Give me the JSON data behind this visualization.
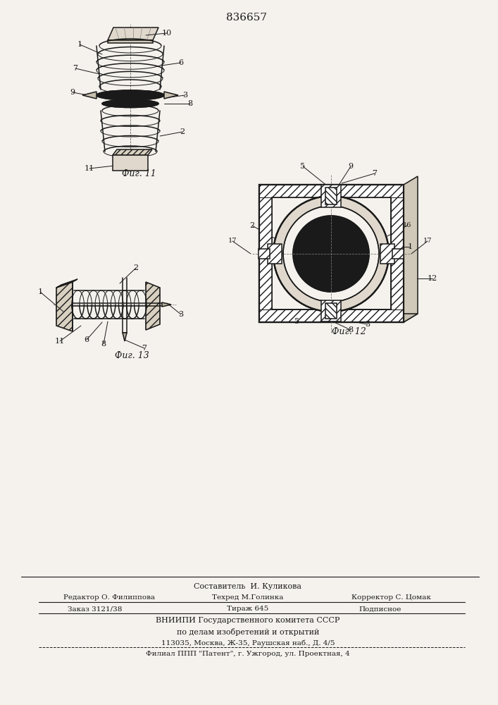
{
  "patent_number": "836657",
  "background_color": "#f5f2ed",
  "line_color": "#1a1a1a",
  "fig11_label": "Фиг. 11",
  "fig12_label": "Фиг. 12",
  "fig13_label": "Фиг. 13",
  "footer_line0": "Составитель  И. Куликова",
  "footer_line1a": "Редактор О. Филиппова",
  "footer_line1b": "Техред М.Голинка",
  "footer_line1c": "Корректор С. Цомак",
  "footer_line2a": "Заказ 3121/38",
  "footer_line2b": "Тираж 645",
  "footer_line2c": "Подписное",
  "footer_line3": "ВНИИПИ Государственного комитета СССР",
  "footer_line4": "по делам изобретений и открытий",
  "footer_line5": "113035, Москва, Ж-35, Раушская наб., Д. 4/5",
  "footer_line6": "Филиал ППП \"Патент\", г. Ужгород, ул. Проектная, 4"
}
